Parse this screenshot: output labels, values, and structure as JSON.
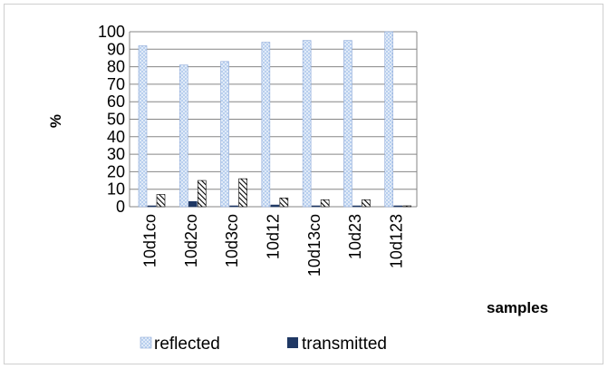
{
  "chart_data": {
    "type": "bar",
    "title": "",
    "xlabel": "samples",
    "ylabel": "%",
    "ylim": [
      0,
      100
    ],
    "y_ticks": [
      "0",
      "10",
      "20",
      "30",
      "40",
      "50",
      "60",
      "70",
      "80",
      "90",
      "100"
    ],
    "categories": [
      "10d1co",
      "10d2co",
      "10d3co",
      "10d12",
      "10d13co",
      "10d23",
      "10d123"
    ],
    "series": [
      {
        "name": "reflected",
        "values": [
          92,
          81,
          83,
          94,
          95,
          95,
          100
        ]
      },
      {
        "name": "transmitted",
        "values": [
          0,
          3,
          0,
          1,
          0,
          0.5,
          0
        ]
      },
      {
        "values": [
          7,
          15,
          16,
          5,
          4,
          4,
          0
        ]
      }
    ],
    "legend": {
      "position": "bottom",
      "entries": [
        "reflected",
        "transmitted"
      ]
    },
    "grid": true,
    "colors": {
      "reflected_fill": "#b8cfee",
      "reflected_dots": "#ffffff",
      "transmitted": "#1f3864",
      "hatch": "#000000",
      "grid": "#868686"
    }
  }
}
